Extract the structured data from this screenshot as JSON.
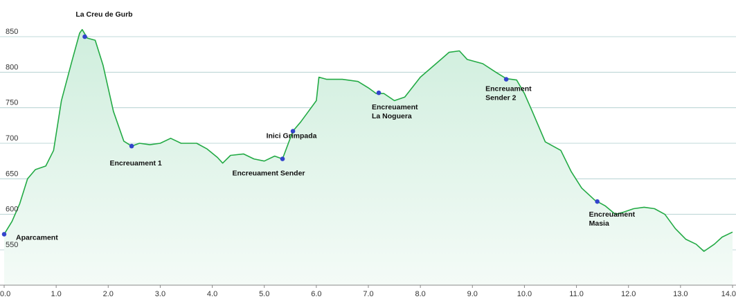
{
  "chart_data": {
    "type": "area",
    "xlim": [
      0,
      14
    ],
    "ylim": [
      500,
      870
    ],
    "x_ticks": [
      "0.0",
      "1.0",
      "2.0",
      "3.0",
      "4.0",
      "5.0",
      "6.0",
      "7.0",
      "8.0",
      "9.0",
      "10.0",
      "11.0",
      "12.0",
      "13.0",
      "14.0"
    ],
    "y_ticks": [
      "550",
      "600",
      "650",
      "700",
      "750",
      "800",
      "850"
    ],
    "grid": true,
    "colors": {
      "line": "#22aa44",
      "fill_top": "#cfeedd",
      "fill_bottom": "#f4fbf7",
      "marker": "#3344cc",
      "grid": "#aacccc"
    },
    "profile": [
      [
        0.0,
        572
      ],
      [
        0.15,
        590
      ],
      [
        0.3,
        615
      ],
      [
        0.45,
        650
      ],
      [
        0.6,
        663
      ],
      [
        0.8,
        668
      ],
      [
        0.95,
        690
      ],
      [
        1.1,
        760
      ],
      [
        1.3,
        815
      ],
      [
        1.45,
        855
      ],
      [
        1.5,
        860
      ],
      [
        1.6,
        848
      ],
      [
        1.75,
        845
      ],
      [
        1.9,
        810
      ],
      [
        2.1,
        745
      ],
      [
        2.3,
        703
      ],
      [
        2.45,
        696
      ],
      [
        2.6,
        700
      ],
      [
        2.8,
        698
      ],
      [
        3.0,
        700
      ],
      [
        3.2,
        707
      ],
      [
        3.4,
        700
      ],
      [
        3.7,
        700
      ],
      [
        3.9,
        692
      ],
      [
        4.1,
        680
      ],
      [
        4.2,
        672
      ],
      [
        4.35,
        683
      ],
      [
        4.6,
        685
      ],
      [
        4.8,
        678
      ],
      [
        5.0,
        675
      ],
      [
        5.2,
        682
      ],
      [
        5.35,
        678
      ],
      [
        5.55,
        717
      ],
      [
        5.7,
        730
      ],
      [
        5.85,
        745
      ],
      [
        6.0,
        760
      ],
      [
        6.05,
        793
      ],
      [
        6.2,
        790
      ],
      [
        6.5,
        790
      ],
      [
        6.8,
        787
      ],
      [
        7.0,
        778
      ],
      [
        7.15,
        770
      ],
      [
        7.3,
        770
      ],
      [
        7.5,
        760
      ],
      [
        7.7,
        765
      ],
      [
        8.0,
        793
      ],
      [
        8.3,
        812
      ],
      [
        8.55,
        828
      ],
      [
        8.75,
        830
      ],
      [
        8.9,
        818
      ],
      [
        9.2,
        812
      ],
      [
        9.45,
        800
      ],
      [
        9.65,
        791
      ],
      [
        9.85,
        789
      ],
      [
        10.0,
        770
      ],
      [
        10.15,
        745
      ],
      [
        10.4,
        702
      ],
      [
        10.7,
        690
      ],
      [
        10.9,
        660
      ],
      [
        11.1,
        637
      ],
      [
        11.35,
        620
      ],
      [
        11.55,
        612
      ],
      [
        11.75,
        600
      ],
      [
        11.9,
        603
      ],
      [
        12.1,
        608
      ],
      [
        12.3,
        610
      ],
      [
        12.5,
        608
      ],
      [
        12.7,
        600
      ],
      [
        12.9,
        580
      ],
      [
        13.1,
        565
      ],
      [
        13.3,
        558
      ],
      [
        13.45,
        548
      ],
      [
        13.65,
        558
      ],
      [
        13.8,
        568
      ],
      [
        14.0,
        575
      ]
    ],
    "waypoints": [
      {
        "x": 0.0,
        "y": 572,
        "label_lines": [
          "Aparcament"
        ]
      },
      {
        "x": 1.55,
        "y": 850,
        "label_lines": [
          "La Creu de Gurb"
        ]
      },
      {
        "x": 2.45,
        "y": 696,
        "label_lines": [
          "Encreuament 1"
        ]
      },
      {
        "x": 5.35,
        "y": 678,
        "label_lines": [
          "Encreuament Sender"
        ]
      },
      {
        "x": 5.55,
        "y": 717,
        "label_lines": [
          "Inici Grimpada"
        ]
      },
      {
        "x": 7.2,
        "y": 771,
        "label_lines": [
          "Encreuament",
          "La Noguera"
        ]
      },
      {
        "x": 9.65,
        "y": 790,
        "label_lines": [
          "Encreuament",
          "Sender 2"
        ]
      },
      {
        "x": 11.4,
        "y": 618,
        "label_lines": [
          "Encreuament",
          "Masia"
        ]
      }
    ]
  }
}
